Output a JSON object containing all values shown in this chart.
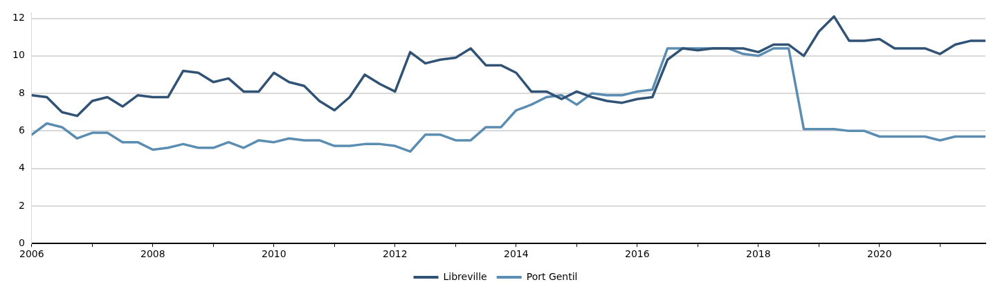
{
  "chart_data": {
    "type": "line",
    "x": [
      2006,
      2006.25,
      2006.5,
      2006.75,
      2007,
      2007.25,
      2007.5,
      2007.75,
      2008,
      2008.25,
      2008.5,
      2008.75,
      2009,
      2009.25,
      2009.5,
      2009.75,
      2010,
      2010.25,
      2010.5,
      2010.75,
      2011,
      2011.25,
      2011.5,
      2011.75,
      2012,
      2012.25,
      2012.5,
      2012.75,
      2013,
      2013.25,
      2013.5,
      2013.75,
      2014,
      2014.25,
      2014.5,
      2014.75,
      2015,
      2015.25,
      2015.5,
      2015.75,
      2016,
      2016.25,
      2016.5,
      2016.75,
      2017,
      2017.25,
      2017.5,
      2017.75,
      2018,
      2018.25,
      2018.5,
      2018.75,
      2019,
      2019.25,
      2019.5,
      2019.75,
      2020,
      2020.25,
      2020.5,
      2020.75,
      2021,
      2021.25,
      2021.5,
      2021.75
    ],
    "series": [
      {
        "name": "Libreville",
        "color": "#2f5275",
        "values": [
          7.9,
          7.8,
          7.0,
          6.8,
          7.6,
          7.8,
          7.3,
          7.9,
          7.8,
          7.8,
          9.2,
          9.1,
          8.6,
          8.8,
          8.1,
          8.1,
          9.1,
          8.6,
          8.4,
          7.6,
          7.1,
          7.8,
          9.0,
          8.5,
          8.1,
          10.2,
          9.6,
          9.8,
          9.9,
          10.4,
          9.5,
          9.5,
          9.1,
          8.1,
          8.1,
          7.7,
          8.1,
          7.8,
          7.6,
          7.5,
          7.7,
          7.8,
          9.8,
          10.4,
          10.3,
          10.4,
          10.4,
          10.4,
          10.2,
          10.6,
          10.6,
          10.0,
          11.3,
          12.1,
          10.8,
          10.8,
          10.9,
          10.4,
          10.4,
          10.4,
          10.1,
          10.6,
          10.8,
          10.8
        ]
      },
      {
        "name": "Port Gentil",
        "color": "#5b8db3",
        "values": [
          5.8,
          6.4,
          6.2,
          5.6,
          5.9,
          5.9,
          5.4,
          5.4,
          5.0,
          5.1,
          5.3,
          5.1,
          5.1,
          5.4,
          5.1,
          5.5,
          5.4,
          5.6,
          5.5,
          5.5,
          5.2,
          5.2,
          5.3,
          5.3,
          5.2,
          4.9,
          5.8,
          5.8,
          5.5,
          5.5,
          6.2,
          6.2,
          7.1,
          7.4,
          7.8,
          7.9,
          7.4,
          8.0,
          7.9,
          7.9,
          8.1,
          8.2,
          10.4,
          10.4,
          10.4,
          10.4,
          10.4,
          10.1,
          10.0,
          10.4,
          10.4,
          6.1,
          6.1,
          6.1,
          6.0,
          6.0,
          5.7,
          5.7,
          5.7,
          5.7,
          5.5,
          5.7,
          5.7,
          5.7
        ]
      }
    ],
    "xlim": [
      2006,
      2021.75
    ],
    "xticks": [
      2006,
      {
        "value": 2007,
        "label": null
      },
      2008,
      {
        "value": 2009,
        "label": null
      },
      2010,
      {
        "value": 2011,
        "label": null
      },
      2012,
      {
        "value": 2013,
        "label": null
      },
      2014,
      {
        "value": 2015,
        "label": null
      },
      2016,
      {
        "value": 2017,
        "label": null
      },
      2018,
      {
        "value": 2019,
        "label": null
      },
      2020,
      {
        "value": 2021,
        "label": null
      }
    ],
    "ylim": [
      0,
      12.3
    ],
    "yticks": [
      0,
      2,
      4,
      6,
      8,
      10,
      12
    ],
    "grid": "y",
    "legend": "bottom",
    "marker": "none",
    "line_style": "solid"
  }
}
